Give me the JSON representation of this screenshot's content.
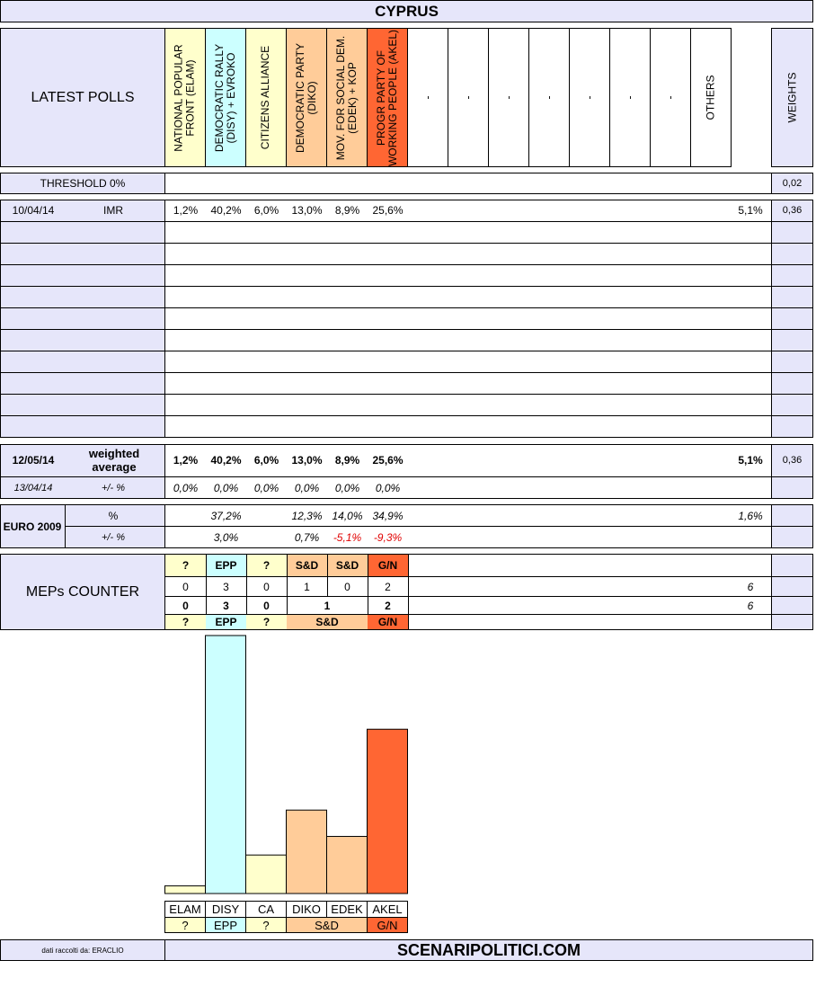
{
  "title": "CYPRUS",
  "header": {
    "latest_polls": "LATEST POLLS",
    "parties": [
      {
        "label": "NATIONAL POPULAR\nFRONT (ELAM)",
        "color": "#ffffcc"
      },
      {
        "label": "DEMOCRATIC RALLY\n(DISY) + EVROKO",
        "color": "#ccffff"
      },
      {
        "label": "CITIZENS ALLIANCE",
        "color": "#ffffcc"
      },
      {
        "label": "DEMOCRATIC PARTY\n(DIKO)",
        "color": "#ffcc99"
      },
      {
        "label": "MOV. FOR SOCIAL DEM.\n(EDEK) + KOP",
        "color": "#ffcc99"
      },
      {
        "label": "PROGR PARTY OF\nWORKING PEOPLE (AKEL)",
        "color": "#ff6633"
      },
      {
        "label": "-",
        "color": "#ffffff"
      },
      {
        "label": "-",
        "color": "#ffffff"
      },
      {
        "label": "-",
        "color": "#ffffff"
      },
      {
        "label": "-",
        "color": "#ffffff"
      },
      {
        "label": "-",
        "color": "#ffffff"
      },
      {
        "label": "-",
        "color": "#ffffff"
      },
      {
        "label": "-",
        "color": "#ffffff"
      },
      {
        "label": "OTHERS",
        "color": "#ffffff"
      }
    ],
    "weights": "WEIGHTS"
  },
  "threshold": {
    "label": "THRESHOLD 0%",
    "weight": "0,02"
  },
  "polls": [
    {
      "date": "10/04/14",
      "institute": "IMR",
      "values": [
        "1,2%",
        "40,2%",
        "6,0%",
        "13,0%",
        "8,9%",
        "25,6%"
      ],
      "others": "5,1%",
      "weight": "0,36"
    }
  ],
  "weighted": {
    "date": "12/05/14",
    "label": "weighted\naverage",
    "values": [
      "1,2%",
      "40,2%",
      "6,0%",
      "13,0%",
      "8,9%",
      "25,6%"
    ],
    "others": "5,1%",
    "weight": "0,36",
    "prev_date": "13/04/14",
    "delta_label": "+/- %",
    "deltas": [
      "0,0%",
      "0,0%",
      "0,0%",
      "0,0%",
      "0,0%",
      "0,0%"
    ]
  },
  "euro2009": {
    "label": "EURO 2009",
    "pct_label": "%",
    "delta_label": "+/- %",
    "values": [
      "",
      "37,2%",
      "",
      "12,3%",
      "14,0%",
      "34,9%"
    ],
    "others": "1,6%",
    "deltas": [
      "",
      "3,0%",
      "",
      "0,7%",
      "-5,1%",
      "-9,3%"
    ]
  },
  "meps": {
    "label": "MEPs COUNTER",
    "groups": [
      "?",
      "EPP",
      "?",
      "S&D",
      "S&D",
      "G/N"
    ],
    "seats": [
      "0",
      "3",
      "0",
      "1",
      "0",
      "2"
    ],
    "seats_total": "6",
    "merged_seats": [
      "0",
      "3",
      "0",
      "1",
      "2"
    ],
    "merged_total": "6",
    "merged_groups": [
      "?",
      "EPP",
      "?",
      "S&D",
      "G/N"
    ]
  },
  "chart_data": {
    "type": "bar",
    "categories": [
      "ELAM",
      "DISY",
      "CA",
      "DIKO",
      "EDEK",
      "AKEL"
    ],
    "values": [
      1.2,
      40.2,
      6.0,
      13.0,
      8.9,
      25.6
    ],
    "groups": [
      "?",
      "EPP",
      "?",
      "S&D",
      "S&D",
      "G/N"
    ],
    "colors": [
      "#ffffcc",
      "#ccffff",
      "#ffffcc",
      "#ffcc99",
      "#ffcc99",
      "#ff6633"
    ],
    "group_labels": [
      "?",
      "EPP",
      "?",
      "S&D",
      "G/N"
    ],
    "title": "",
    "xlabel": "",
    "ylabel": "",
    "ylim": [
      0,
      40.2
    ]
  },
  "footer": {
    "credit": "dati raccolti da: ERACLIO",
    "site": "SCENARIPOLITICI.COM"
  }
}
